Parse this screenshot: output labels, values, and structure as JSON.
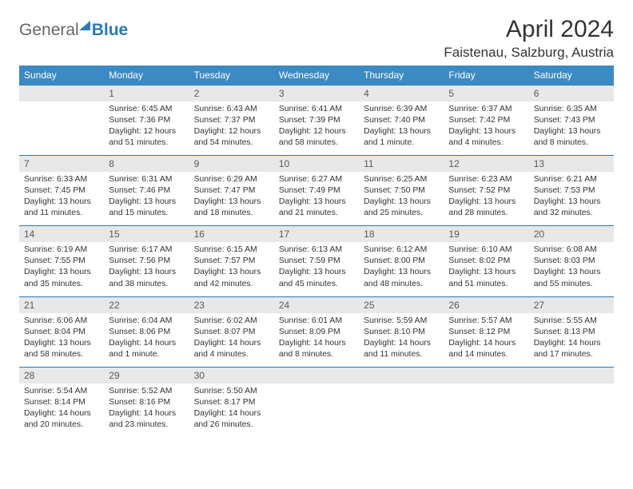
{
  "logo": {
    "part1": "General",
    "part2": "Blue"
  },
  "title": "April 2024",
  "location": "Faistenau, Salzburg, Austria",
  "colors": {
    "header_bg": "#3b8ac4",
    "daynum_bg": "#e8e8e8",
    "border": "#2a7ab8",
    "text": "#333333"
  },
  "day_names": [
    "Sunday",
    "Monday",
    "Tuesday",
    "Wednesday",
    "Thursday",
    "Friday",
    "Saturday"
  ],
  "weeks": [
    {
      "nums": [
        "",
        "1",
        "2",
        "3",
        "4",
        "5",
        "6"
      ],
      "cells": [
        "",
        "Sunrise: 6:45 AM\nSunset: 7:36 PM\nDaylight: 12 hours and 51 minutes.",
        "Sunrise: 6:43 AM\nSunset: 7:37 PM\nDaylight: 12 hours and 54 minutes.",
        "Sunrise: 6:41 AM\nSunset: 7:39 PM\nDaylight: 12 hours and 58 minutes.",
        "Sunrise: 6:39 AM\nSunset: 7:40 PM\nDaylight: 13 hours and 1 minute.",
        "Sunrise: 6:37 AM\nSunset: 7:42 PM\nDaylight: 13 hours and 4 minutes.",
        "Sunrise: 6:35 AM\nSunset: 7:43 PM\nDaylight: 13 hours and 8 minutes."
      ]
    },
    {
      "nums": [
        "7",
        "8",
        "9",
        "10",
        "11",
        "12",
        "13"
      ],
      "cells": [
        "Sunrise: 6:33 AM\nSunset: 7:45 PM\nDaylight: 13 hours and 11 minutes.",
        "Sunrise: 6:31 AM\nSunset: 7:46 PM\nDaylight: 13 hours and 15 minutes.",
        "Sunrise: 6:29 AM\nSunset: 7:47 PM\nDaylight: 13 hours and 18 minutes.",
        "Sunrise: 6:27 AM\nSunset: 7:49 PM\nDaylight: 13 hours and 21 minutes.",
        "Sunrise: 6:25 AM\nSunset: 7:50 PM\nDaylight: 13 hours and 25 minutes.",
        "Sunrise: 6:23 AM\nSunset: 7:52 PM\nDaylight: 13 hours and 28 minutes.",
        "Sunrise: 6:21 AM\nSunset: 7:53 PM\nDaylight: 13 hours and 32 minutes."
      ]
    },
    {
      "nums": [
        "14",
        "15",
        "16",
        "17",
        "18",
        "19",
        "20"
      ],
      "cells": [
        "Sunrise: 6:19 AM\nSunset: 7:55 PM\nDaylight: 13 hours and 35 minutes.",
        "Sunrise: 6:17 AM\nSunset: 7:56 PM\nDaylight: 13 hours and 38 minutes.",
        "Sunrise: 6:15 AM\nSunset: 7:57 PM\nDaylight: 13 hours and 42 minutes.",
        "Sunrise: 6:13 AM\nSunset: 7:59 PM\nDaylight: 13 hours and 45 minutes.",
        "Sunrise: 6:12 AM\nSunset: 8:00 PM\nDaylight: 13 hours and 48 minutes.",
        "Sunrise: 6:10 AM\nSunset: 8:02 PM\nDaylight: 13 hours and 51 minutes.",
        "Sunrise: 6:08 AM\nSunset: 8:03 PM\nDaylight: 13 hours and 55 minutes."
      ]
    },
    {
      "nums": [
        "21",
        "22",
        "23",
        "24",
        "25",
        "26",
        "27"
      ],
      "cells": [
        "Sunrise: 6:06 AM\nSunset: 8:04 PM\nDaylight: 13 hours and 58 minutes.",
        "Sunrise: 6:04 AM\nSunset: 8:06 PM\nDaylight: 14 hours and 1 minute.",
        "Sunrise: 6:02 AM\nSunset: 8:07 PM\nDaylight: 14 hours and 4 minutes.",
        "Sunrise: 6:01 AM\nSunset: 8:09 PM\nDaylight: 14 hours and 8 minutes.",
        "Sunrise: 5:59 AM\nSunset: 8:10 PM\nDaylight: 14 hours and 11 minutes.",
        "Sunrise: 5:57 AM\nSunset: 8:12 PM\nDaylight: 14 hours and 14 minutes.",
        "Sunrise: 5:55 AM\nSunset: 8:13 PM\nDaylight: 14 hours and 17 minutes."
      ]
    },
    {
      "nums": [
        "28",
        "29",
        "30",
        "",
        "",
        "",
        ""
      ],
      "cells": [
        "Sunrise: 5:54 AM\nSunset: 8:14 PM\nDaylight: 14 hours and 20 minutes.",
        "Sunrise: 5:52 AM\nSunset: 8:16 PM\nDaylight: 14 hours and 23 minutes.",
        "Sunrise: 5:50 AM\nSunset: 8:17 PM\nDaylight: 14 hours and 26 minutes.",
        "",
        "",
        "",
        ""
      ]
    }
  ]
}
